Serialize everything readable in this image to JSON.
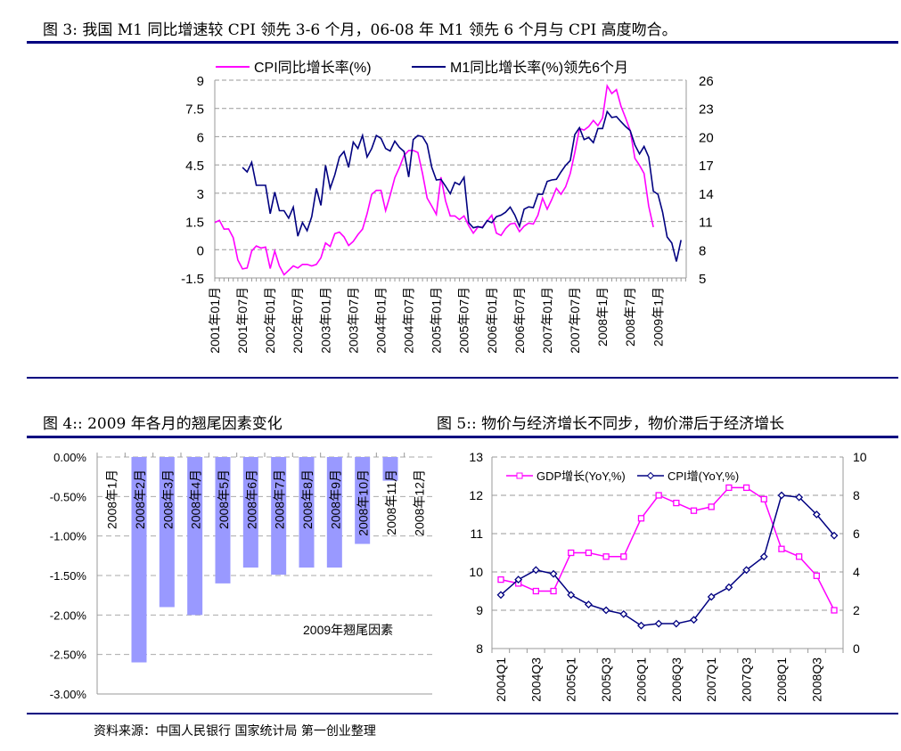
{
  "figure3": {
    "title": "图 3:  我国 M1 同比增速较 CPI 领先 3-6 个月，06-08 年 M1 领先 6 个月与 CPI 高度吻合。",
    "chart_data": {
      "type": "line",
      "title": "",
      "legend_position": "top",
      "grid": true,
      "x_start": "2001年01月",
      "x_frequency": "monthly",
      "x_tick_labels": [
        "2001年01月",
        "2001年07月",
        "2002年01月",
        "2002年07月",
        "2003年01月",
        "2003年07月",
        "2004年01月",
        "2004年07月",
        "2005年01月",
        "2005年07月",
        "2006年01月",
        "2006年07月",
        "2007年01月",
        "2007年07月",
        "2008年1月",
        "2008年7月",
        "2009年1月"
      ],
      "y_left": {
        "range": [
          -1.5,
          9
        ],
        "ticks": [
          "9",
          "7.5",
          "6",
          "4.5",
          "3",
          "1.5",
          "0",
          "-1.5"
        ]
      },
      "y_right": {
        "range": [
          5,
          26
        ],
        "ticks": [
          "26",
          "23",
          "20",
          "17",
          "14",
          "11",
          "8",
          "5"
        ]
      },
      "series": [
        {
          "name": "CPI同比增长率(%)",
          "axis": "left",
          "color": "#ff00ff",
          "start_month_index": 0,
          "values": [
            1.44,
            1.56,
            1.09,
            1.1,
            0.64,
            -0.55,
            -1.02,
            -0.97,
            -0.07,
            0.2,
            0.09,
            0.14,
            -1.0,
            -0.07,
            -0.86,
            -1.33,
            -1.1,
            -0.86,
            -0.97,
            -0.78,
            -0.78,
            -0.86,
            -0.78,
            -0.43,
            0.36,
            0.17,
            0.85,
            0.93,
            0.68,
            0.22,
            0.44,
            0.8,
            1.09,
            1.91,
            2.94,
            3.15,
            3.15,
            2.07,
            2.89,
            3.82,
            4.37,
            5.0,
            5.27,
            5.27,
            5.16,
            4.05,
            2.74,
            2.31,
            1.87,
            3.85,
            2.58,
            1.79,
            1.79,
            1.6,
            1.79,
            1.28,
            0.88,
            1.2,
            1.2,
            1.52,
            1.83,
            0.88,
            0.76,
            1.12,
            1.36,
            1.41,
            0.96,
            1.25,
            1.41,
            1.36,
            1.83,
            2.74,
            2.15,
            2.66,
            3.26,
            2.94,
            3.34,
            4.05,
            5.16,
            6.43,
            6.35,
            6.54,
            6.86,
            6.59,
            6.99,
            8.7,
            8.29,
            8.5,
            7.62,
            6.99,
            6.32,
            4.85,
            4.48,
            4.05,
            2.31,
            1.2
          ]
        },
        {
          "name": "M1同比增长率(%)领先6个月",
          "axis": "right",
          "color": "#000080",
          "start_month_index": 6,
          "values": [
            16.74,
            16.26,
            17.28,
            14.84,
            14.84,
            14.84,
            11.82,
            14.11,
            12.14,
            12.14,
            11.35,
            12.52,
            9.44,
            10.87,
            10.02,
            11.51,
            14.52,
            12.71,
            16.96,
            14.52,
            15.95,
            17.85,
            18.42,
            16.74,
            19.43,
            18.74,
            20.13,
            17.85,
            18.74,
            20.13,
            19.82,
            18.74,
            18.48,
            19.53,
            18.86,
            18.42,
            15.72,
            19.69,
            20.13,
            20.0,
            19.18,
            16.74,
            15.41,
            15.47,
            14.74,
            13.95,
            15.15,
            14.9,
            15.69,
            10.87,
            10.33,
            10.46,
            10.33,
            11.09,
            10.87,
            11.51,
            11.67,
            11.98,
            12.52,
            11.67,
            10.49,
            12.3,
            12.55,
            12.46,
            13.88,
            13.88,
            15.25,
            15.41,
            15.47,
            16.26,
            16.96,
            17.47,
            20.23,
            20.96,
            19.69,
            19.91,
            19.37,
            20.86,
            20.86,
            22.67,
            22.04,
            22.13,
            21.59,
            21.08,
            20.64,
            19.12,
            18.17,
            18.96,
            17.85,
            14.2,
            13.88,
            11.98,
            9.35,
            8.72,
            6.75,
            9.03
          ]
        }
      ]
    }
  },
  "figure4": {
    "title": "图 4::  2009 年各月的翘尾因素变化",
    "chart_data": {
      "type": "bar",
      "title": "",
      "annotation": "2009年翘尾因素",
      "grid": true,
      "categories": [
        "2008年1月",
        "2008年2月",
        "2008年3月",
        "2008年4月",
        "2008年5月",
        "2008年6月",
        "2008年7月",
        "2008年8月",
        "2008年9月",
        "2008年10月",
        "2008年11月",
        "2008年12月"
      ],
      "values": [
        0,
        -2.6,
        -1.9,
        -2.0,
        -1.6,
        -1.4,
        -1.49,
        -1.4,
        -1.4,
        -1.1,
        -0.3,
        0
      ],
      "ylim": [
        -3,
        0
      ],
      "y_ticks": [
        "0.00%",
        "-0.50%",
        "-1.00%",
        "-1.50%",
        "-2.00%",
        "-2.50%",
        "-3.00%"
      ],
      "bar_color": "#9999ff"
    }
  },
  "figure5": {
    "title": "图 5::  物价与经济增长不同步，物价滞后于经济增长",
    "chart_data": {
      "type": "line",
      "title": "",
      "legend_position": "top-left",
      "grid": true,
      "categories": [
        "2004Q1",
        "2004Q2",
        "2004Q3",
        "2004Q4",
        "2005Q1",
        "2005Q2",
        "2005Q3",
        "2005Q4",
        "2006Q1",
        "2006Q2",
        "2006Q3",
        "2006Q4",
        "2007Q1",
        "2007Q2",
        "2007Q3",
        "2007Q4",
        "2008Q1",
        "2008Q2",
        "2008Q3",
        "2008Q4"
      ],
      "x_tick_labels": [
        "2004Q1",
        "2004Q3",
        "2005Q1",
        "2005Q3",
        "2006Q1",
        "2006Q3",
        "2007Q1",
        "2007Q3",
        "2008Q1",
        "2008Q3"
      ],
      "y_left": {
        "range": [
          8,
          13
        ],
        "ticks": [
          "13",
          "12",
          "11",
          "10",
          "9",
          "8"
        ]
      },
      "y_right": {
        "range": [
          0,
          10
        ],
        "ticks": [
          "10",
          "8",
          "6",
          "4",
          "2",
          "0"
        ]
      },
      "series": [
        {
          "name": "GDP增长(YoY,%)",
          "axis": "left",
          "color": "#ff00ff",
          "marker": "square",
          "values": [
            9.8,
            9.7,
            9.5,
            9.5,
            10.5,
            10.5,
            10.4,
            10.4,
            11.4,
            12.0,
            11.8,
            11.6,
            11.7,
            12.2,
            12.2,
            11.9,
            10.6,
            10.4,
            9.9,
            9.0
          ]
        },
        {
          "name": "CPI增(YoY,%)",
          "axis": "right",
          "color": "#000080",
          "marker": "diamond",
          "values": [
            2.8,
            3.6,
            4.1,
            3.9,
            2.8,
            2.3,
            2.0,
            1.8,
            1.2,
            1.3,
            1.3,
            1.5,
            2.7,
            3.2,
            4.1,
            4.8,
            8.0,
            7.9,
            7.0,
            5.9
          ]
        }
      ]
    }
  },
  "source": "资料来源：中国人民银行 国家统计局 第一创业整理"
}
